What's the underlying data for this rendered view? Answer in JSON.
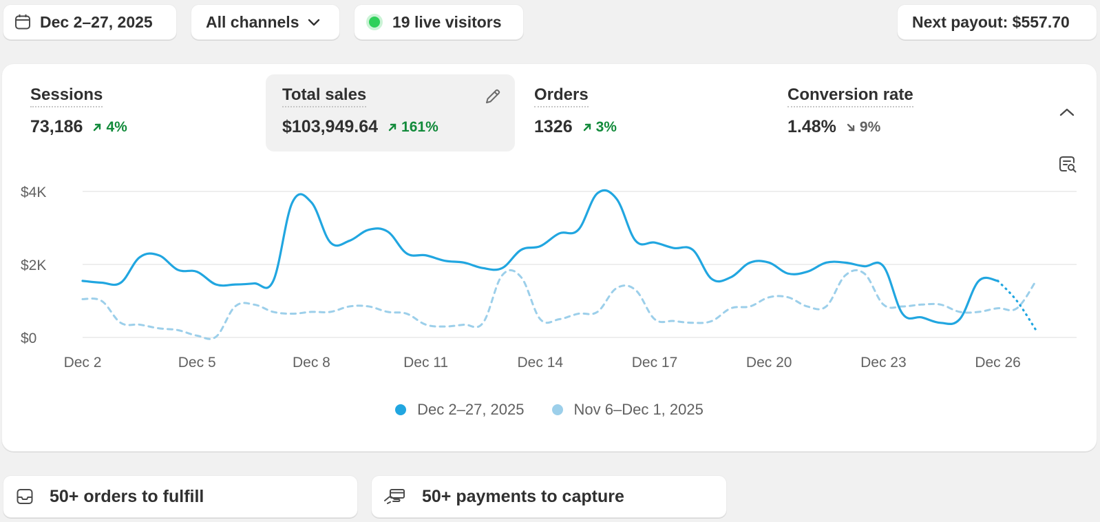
{
  "topbar": {
    "date_range": "Dec 2–27, 2025",
    "channels": "All channels",
    "live_visitors": "19 live visitors",
    "next_payout": "Next payout: $557.70"
  },
  "metrics": [
    {
      "label": "Sessions",
      "value": "73,186",
      "change": "4%",
      "direction": "up",
      "active": false
    },
    {
      "label": "Total sales",
      "value": "$103,949.64",
      "change": "161%",
      "direction": "up",
      "active": true
    },
    {
      "label": "Orders",
      "value": "1326",
      "change": "3%",
      "direction": "up",
      "active": false
    },
    {
      "label": "Conversion rate",
      "value": "1.48%",
      "change": "9%",
      "direction": "down",
      "active": false
    }
  ],
  "chart_data": {
    "type": "line",
    "y_ticks": [
      "$4K",
      "$2K",
      "$0"
    ],
    "ylim": [
      0,
      4000
    ],
    "x_ticks": [
      "Dec 2",
      "Dec 5",
      "Dec 8",
      "Dec 11",
      "Dec 14",
      "Dec 17",
      "Dec 20",
      "Dec 23",
      "Dec 26"
    ],
    "x_tick_days": [
      2,
      5,
      8,
      11,
      14,
      17,
      20,
      23,
      26
    ],
    "grid": true,
    "legend": "bottom-center",
    "series": [
      {
        "name": "Dec 2–27, 2025",
        "color": "#21a6e0",
        "style": "solid, dotted for final segment",
        "x": [
          "Dec 2",
          "Dec 2.5",
          "Dec 3",
          "Dec 3.5",
          "Dec 4",
          "Dec 4.5",
          "Dec 5",
          "Dec 5.5",
          "Dec 6",
          "Dec 6.5",
          "Dec 7",
          "Dec 7.5",
          "Dec 8",
          "Dec 8.5",
          "Dec 9",
          "Dec 9.5",
          "Dec 10",
          "Dec 10.5",
          "Dec 11",
          "Dec 11.5",
          "Dec 12",
          "Dec 12.5",
          "Dec 13",
          "Dec 13.5",
          "Dec 14",
          "Dec 14.5",
          "Dec 15",
          "Dec 15.5",
          "Dec 16",
          "Dec 16.5",
          "Dec 17",
          "Dec 17.5",
          "Dec 18",
          "Dec 18.5",
          "Dec 19",
          "Dec 19.5",
          "Dec 20",
          "Dec 20.5",
          "Dec 21",
          "Dec 21.5",
          "Dec 22",
          "Dec 22.5",
          "Dec 23",
          "Dec 23.5",
          "Dec 24",
          "Dec 24.5",
          "Dec 25",
          "Dec 25.5",
          "Dec 26",
          "Dec 26.5",
          "Dec 27"
        ],
        "values": [
          1550,
          1500,
          1500,
          2200,
          2250,
          1850,
          1800,
          1450,
          1450,
          1480,
          1550,
          3700,
          3700,
          2600,
          2650,
          2950,
          2900,
          2300,
          2250,
          2100,
          2050,
          1900,
          1900,
          2400,
          2500,
          2850,
          2950,
          3950,
          3800,
          2650,
          2600,
          2450,
          2400,
          1600,
          1650,
          2050,
          2050,
          1750,
          1800,
          2050,
          2050,
          1950,
          1950,
          650,
          550,
          400,
          500,
          1550,
          1550,
          1000,
          200
        ]
      },
      {
        "name": "Nov 6–Dec 1, 2025",
        "color": "#9ccfea",
        "style": "dashed",
        "x": [
          "Dec 2",
          "Dec 2.5",
          "Dec 3",
          "Dec 3.5",
          "Dec 4",
          "Dec 4.5",
          "Dec 5",
          "Dec 5.5",
          "Dec 6",
          "Dec 6.5",
          "Dec 7",
          "Dec 7.5",
          "Dec 8",
          "Dec 8.5",
          "Dec 9",
          "Dec 9.5",
          "Dec 10",
          "Dec 10.5",
          "Dec 11",
          "Dec 11.5",
          "Dec 12",
          "Dec 12.5",
          "Dec 13",
          "Dec 13.5",
          "Dec 14",
          "Dec 14.5",
          "Dec 15",
          "Dec 15.5",
          "Dec 16",
          "Dec 16.5",
          "Dec 17",
          "Dec 17.5",
          "Dec 18",
          "Dec 18.5",
          "Dec 19",
          "Dec 19.5",
          "Dec 20",
          "Dec 20.5",
          "Dec 21",
          "Dec 21.5",
          "Dec 22",
          "Dec 22.5",
          "Dec 23",
          "Dec 23.5",
          "Dec 24",
          "Dec 24.5",
          "Dec 25",
          "Dec 25.5",
          "Dec 26",
          "Dec 26.5",
          "Dec 27"
        ],
        "values": [
          1050,
          1000,
          400,
          350,
          250,
          200,
          50,
          20,
          850,
          900,
          700,
          650,
          700,
          700,
          850,
          850,
          700,
          650,
          350,
          300,
          350,
          400,
          1700,
          1650,
          500,
          500,
          650,
          700,
          1350,
          1300,
          500,
          450,
          400,
          450,
          800,
          850,
          1100,
          1100,
          850,
          850,
          1700,
          1750,
          900,
          850,
          900,
          900,
          700,
          700,
          800,
          800,
          1550
        ]
      }
    ]
  },
  "legend": {
    "current": "Dec 2–27, 2025",
    "previous": "Nov 6–Dec 1, 2025"
  },
  "tasks": {
    "fulfill": "50+ orders to fulfill",
    "capture": "50+ payments to capture"
  },
  "colors": {
    "accent": "#21a6e0",
    "accent_prev": "#9ccfea",
    "positive": "#118a3a",
    "live_dot": "#2ed05a"
  }
}
